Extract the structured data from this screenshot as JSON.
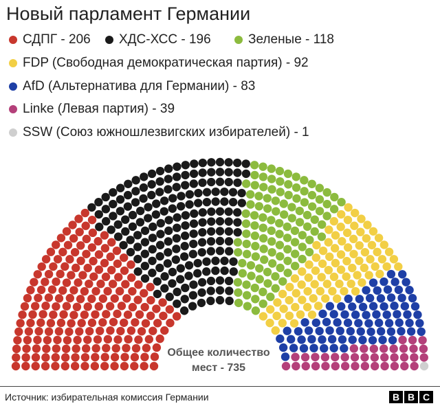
{
  "title": "Новый парламент Германии",
  "legend": [
    {
      "label": "СДПГ - 206",
      "color": "#c8372d"
    },
    {
      "label": "ХДС-ХСС - 196",
      "color": "#1a1a1a"
    },
    {
      "label": "Зеленые - 118",
      "color": "#8cbb3e"
    },
    {
      "label": "FDP (Свободная демократическая партия) - 92",
      "color": "#f2cf45"
    },
    {
      "label": "AfD (Альтернатива для Германии) - 83",
      "color": "#1e3fa6"
    },
    {
      "label": "Linke (Левая партия) - 39",
      "color": "#b4407a"
    },
    {
      "label": "SSW (Союз южношлезвигских избирателей) - 1",
      "color": "#cfcfcf"
    }
  ],
  "chart_data": {
    "type": "parliament",
    "title": "Новый парламент Германии",
    "parties": [
      {
        "name": "СДПГ",
        "seats": 206,
        "color": "#c8372d"
      },
      {
        "name": "ХДС-ХСС",
        "seats": 196,
        "color": "#1a1a1a"
      },
      {
        "name": "Зеленые",
        "seats": 118,
        "color": "#8cbb3e"
      },
      {
        "name": "FDP (Свободная демократическая партия)",
        "seats": 92,
        "color": "#f2cf45"
      },
      {
        "name": "AfD (Альтернатива для Германии)",
        "seats": 83,
        "color": "#1e3fa6"
      },
      {
        "name": "Linke (Левая партия)",
        "seats": 39,
        "color": "#b4407a"
      },
      {
        "name": "SSW (Союз южношлезвигских избирателей)",
        "seats": 1,
        "color": "#cfcfcf"
      }
    ],
    "total_seats": 735,
    "total_label_line1": "Общее количество",
    "total_label_line2": "мест - 735"
  },
  "footer": {
    "source": "Источник: избирательная комиссия Германии",
    "brand_letters": [
      "B",
      "B",
      "C"
    ]
  }
}
